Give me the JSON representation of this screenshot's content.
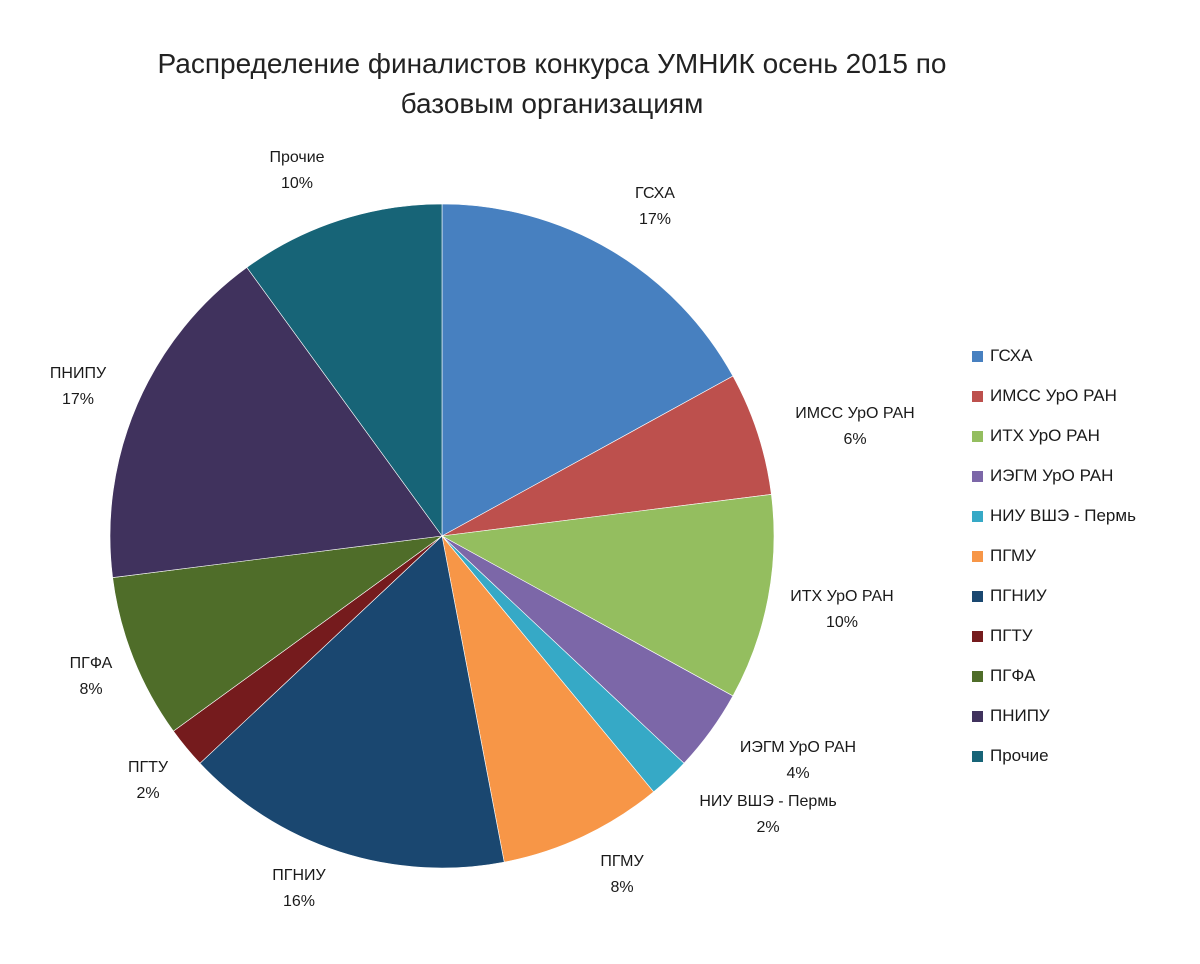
{
  "chart_data": {
    "type": "pie",
    "title_lines": [
      "Распределение финалистов конкурса УМНИК осень 2015 по",
      "базовым организациям"
    ],
    "slices": [
      {
        "name": "ГСХА",
        "value": 17,
        "label": "17%",
        "color": "#4780C0"
      },
      {
        "name": "ИМСС УрО РАН",
        "value": 6,
        "label": "6%",
        "color": "#BD504D"
      },
      {
        "name": "ИТХ УрО РАН",
        "value": 10,
        "label": "10%",
        "color": "#94BE5F"
      },
      {
        "name": "ИЭГМ УрО РАН",
        "value": 4,
        "label": "4%",
        "color": "#7C67A8"
      },
      {
        "name": "НИУ ВШЭ - Пермь",
        "value": 2,
        "label": "2%",
        "color": "#36A9C6"
      },
      {
        "name": "ПГМУ",
        "value": 8,
        "label": "8%",
        "color": "#F79647"
      },
      {
        "name": "ПГНИУ",
        "value": 16,
        "label": "16%",
        "color": "#1A4770"
      },
      {
        "name": "ПГТУ",
        "value": 2,
        "label": "2%",
        "color": "#751B1D"
      },
      {
        "name": "ПГФА",
        "value": 8,
        "label": "8%",
        "color": "#4F6D29"
      },
      {
        "name": "ПНИПУ",
        "value": 17,
        "label": "17%",
        "color": "#40325D"
      },
      {
        "name": "Прочие",
        "value": 10,
        "label": "10%",
        "color": "#176477"
      }
    ],
    "legend_position": "right"
  }
}
